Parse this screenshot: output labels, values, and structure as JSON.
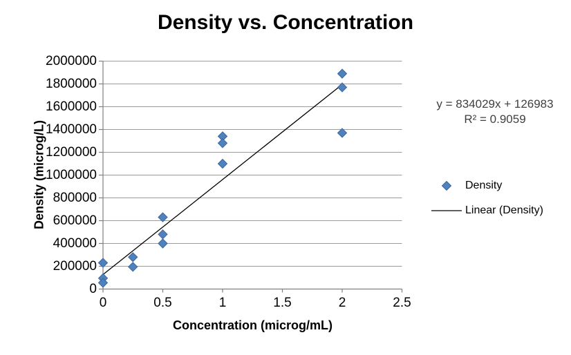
{
  "title": "Density vs. Concentration",
  "axes": {
    "x_title": "Concentration (microg/mL)",
    "y_title": "Density (microg/L)"
  },
  "trendline_label": {
    "line1": "y = 834029x + 126983",
    "line2": "R² = 0.9059"
  },
  "legend": {
    "position": "right",
    "entries": [
      {
        "label": "Density",
        "marker": "diamond"
      },
      {
        "label": "Linear (Density)",
        "marker": "line"
      }
    ]
  },
  "colors": {
    "marker_fill": "#4F81BD",
    "marker_stroke": "#3A679C",
    "trendline": "#000000",
    "gridline": "#9B9B9B",
    "axis": "#7F7F7F",
    "equation_text": "#404040",
    "text": "#000000"
  },
  "chart_data": {
    "type": "scatter",
    "title": "Density vs. Concentration",
    "xlabel": "Concentration (microg/mL)",
    "ylabel": "Density (microg/L)",
    "xlim": [
      0,
      2.5
    ],
    "ylim": [
      0,
      2000000
    ],
    "x_ticks": [
      0,
      0.5,
      1,
      1.5,
      2,
      2.5
    ],
    "y_ticks": [
      0,
      200000,
      400000,
      600000,
      800000,
      1000000,
      1200000,
      1400000,
      1600000,
      1800000,
      2000000
    ],
    "grid": "horizontal",
    "legend_position": "right",
    "series": [
      {
        "name": "Density",
        "points": [
          [
            0,
            230000
          ],
          [
            0,
            95000
          ],
          [
            0,
            55000
          ],
          [
            0.25,
            280000
          ],
          [
            0.25,
            195000
          ],
          [
            0.5,
            630000
          ],
          [
            0.5,
            480000
          ],
          [
            0.5,
            400000
          ],
          [
            1,
            1340000
          ],
          [
            1,
            1280000
          ],
          [
            1,
            1100000
          ],
          [
            2,
            1890000
          ],
          [
            2,
            1770000
          ],
          [
            2,
            1370000
          ]
        ]
      }
    ],
    "trendline": {
      "name": "Linear (Density)",
      "slope": 834029,
      "intercept": 126983,
      "r_squared": 0.9059,
      "x_range": [
        0,
        2
      ]
    }
  }
}
